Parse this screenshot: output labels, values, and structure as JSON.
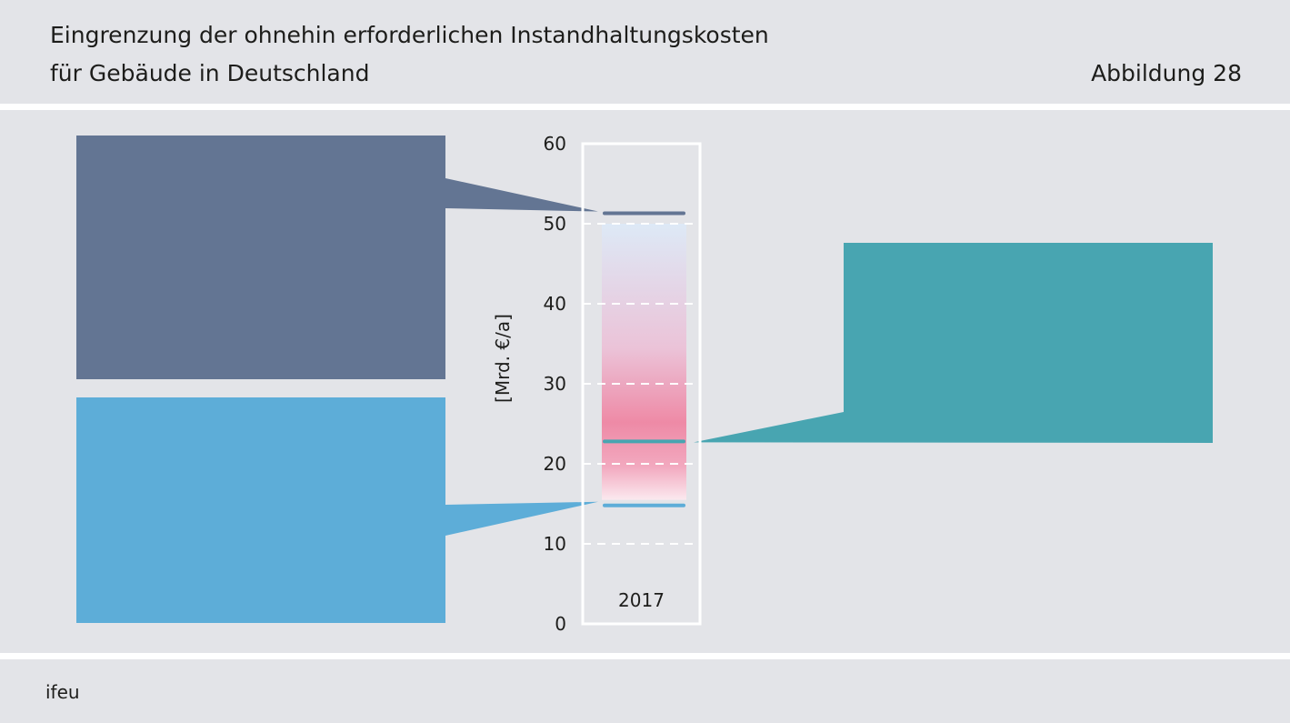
{
  "header": {
    "title_line1": "Eingrenzung der ohnehin erforderlichen Instandhaltungskosten",
    "title_line2": "für Gebäude in Deutschland",
    "figure_label": "Abbildung 28"
  },
  "footer": {
    "source": "ifeu"
  },
  "colors": {
    "upper": "#637593",
    "lower": "#5dadd8",
    "middle": "#48a5b1",
    "gradient_top": "#dde9f6",
    "gradient_bottom": "#ee8aa6",
    "background": "#e3e4e8"
  },
  "chart_data": {
    "type": "range",
    "categories": [
      "2017"
    ],
    "ylabel": "[Mrd. €/a]",
    "ylim": [
      0,
      60
    ],
    "yticks": [
      0,
      10,
      20,
      30,
      40,
      50,
      60
    ],
    "grid": true,
    "gradient_range": [
      15.5,
      50
    ],
    "markers": [
      {
        "key": "upper",
        "value": 51.3
      },
      {
        "key": "middle",
        "value": 22.8
      },
      {
        "key": "lower",
        "value": 14.8
      }
    ]
  }
}
